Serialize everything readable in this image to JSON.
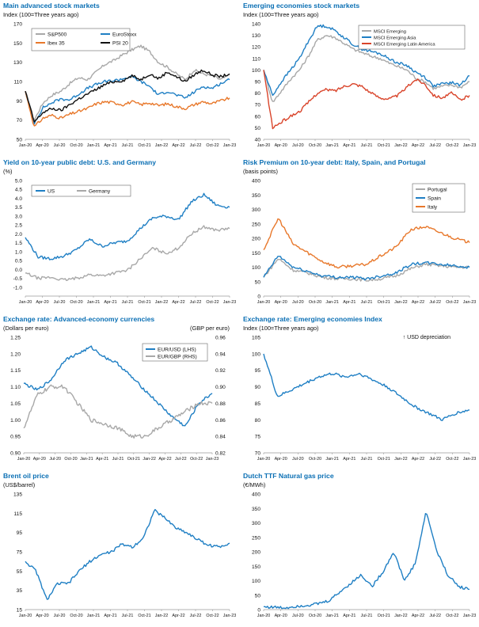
{
  "xticks": [
    "Jan-20",
    "Apr-20",
    "Jul-20",
    "Oct-20",
    "Jan-21",
    "Apr-21",
    "Jul-21",
    "Oct-21",
    "Jan-22",
    "Apr-22",
    "Jul-22",
    "Oct-22",
    "Jan-23"
  ],
  "colors": {
    "blue": "#1f7fc4",
    "grey": "#a8a8a8",
    "orange": "#e8782b",
    "black": "#111111",
    "red": "#d9442a",
    "title": "#0a6fb4"
  },
  "chart_data": [
    {
      "id": "p1",
      "type": "line",
      "title": "Main advanced stock markets",
      "subtitle": "Index (100=Three years ago)",
      "ylim": [
        50,
        170
      ],
      "yticks": [
        50,
        70,
        90,
        110,
        130,
        150,
        170
      ],
      "grid": false,
      "legend": "top-left",
      "legend_cols": 2,
      "series": [
        {
          "name": "S&P500",
          "color": "#a8a8a8",
          "values": [
            100,
            70,
            88,
            96,
            100,
            108,
            114,
            112,
            120,
            128,
            132,
            138,
            143,
            147,
            141,
            130,
            125,
            118,
            112,
            122,
            118,
            116,
            112,
            117
          ]
        },
        {
          "name": "EuroStoxx",
          "color": "#1f7fc4",
          "values": [
            100,
            67,
            83,
            88,
            92,
            91,
            97,
            103,
            107,
            110,
            111,
            113,
            115,
            110,
            105,
            96,
            100,
            96,
            93,
            99,
            105,
            103,
            108,
            112
          ]
        },
        {
          "name": "Ibex 35",
          "color": "#e8782b",
          "values": [
            100,
            63,
            72,
            75,
            72,
            76,
            79,
            82,
            87,
            89,
            88,
            86,
            89,
            86,
            88,
            85,
            87,
            84,
            82,
            86,
            89,
            87,
            90,
            93
          ]
        },
        {
          "name": "PSI 20",
          "color": "#111111",
          "values": [
            100,
            68,
            78,
            82,
            80,
            86,
            92,
            97,
            102,
            107,
            110,
            111,
            116,
            112,
            118,
            113,
            120,
            115,
            110,
            117,
            122,
            117,
            115,
            118
          ]
        }
      ]
    },
    {
      "id": "p2",
      "type": "line",
      "title": "Emerging economies stock markets",
      "subtitle": "Index (100=Three years ago)",
      "ylim": [
        40,
        140
      ],
      "yticks": [
        40,
        50,
        60,
        70,
        80,
        90,
        100,
        110,
        120,
        130,
        140
      ],
      "grid": false,
      "legend": "top-right",
      "legend_cols": 1,
      "series": [
        {
          "name": "MSCI Emerging",
          "color": "#a8a8a8",
          "values": [
            100,
            72,
            82,
            92,
            100,
            112,
            126,
            130,
            128,
            123,
            118,
            115,
            112,
            110,
            106,
            103,
            100,
            93,
            90,
            84,
            86,
            87,
            85,
            90
          ]
        },
        {
          "name": "MSCI Emerging Asia",
          "color": "#1f7fc4",
          "values": [
            100,
            78,
            90,
            100,
            110,
            125,
            138,
            138,
            134,
            128,
            122,
            118,
            116,
            114,
            110,
            106,
            104,
            98,
            94,
            86,
            88,
            89,
            87,
            95
          ]
        },
        {
          "name": "MSCI Emerging Latin America",
          "color": "#d9442a",
          "values": [
            100,
            50,
            55,
            60,
            64,
            72,
            80,
            83,
            82,
            86,
            88,
            86,
            80,
            76,
            75,
            78,
            85,
            92,
            88,
            78,
            76,
            80,
            74,
            78
          ]
        }
      ]
    },
    {
      "id": "p3",
      "type": "line",
      "title": "Yield on 10-year public debt: U.S. and Germany",
      "subtitle": "(%)",
      "ylim": [
        -1.5,
        5.0
      ],
      "yticks": [
        -1.0,
        -0.5,
        0.0,
        0.5,
        1.0,
        1.5,
        2.0,
        2.5,
        3.0,
        3.5,
        4.0,
        4.5,
        5.0
      ],
      "grid": false,
      "legend": "top-left",
      "legend_cols": 2,
      "series": [
        {
          "name": "US",
          "color": "#1f7fc4",
          "values": [
            1.8,
            0.7,
            0.6,
            0.75,
            1.1,
            1.7,
            1.3,
            1.5,
            1.6,
            2.3,
            2.9,
            3.0,
            2.8,
            3.8,
            4.2,
            3.6,
            3.5
          ]
        },
        {
          "name": "Germany",
          "color": "#a8a8a8",
          "values": [
            -0.2,
            -0.5,
            -0.45,
            -0.6,
            -0.5,
            -0.3,
            -0.35,
            -0.2,
            -0.05,
            0.6,
            1.2,
            0.9,
            1.2,
            2.0,
            2.4,
            2.2,
            2.3
          ]
        }
      ]
    },
    {
      "id": "p4",
      "type": "line",
      "title": "Risk Premium on 10-year debt: Italy, Spain, and Portugal",
      "subtitle": "(basis points)",
      "ylim": [
        0,
        400
      ],
      "yticks": [
        0,
        50,
        100,
        150,
        200,
        250,
        300,
        350,
        400
      ],
      "grid": false,
      "legend": "top-right",
      "legend_cols": 1,
      "series": [
        {
          "name": "Portugal",
          "color": "#a8a8a8",
          "values": [
            65,
            130,
            90,
            80,
            65,
            60,
            60,
            55,
            60,
            70,
            95,
            110,
            105,
            100,
            100
          ]
        },
        {
          "name": "Spain",
          "color": "#1f7fc4",
          "values": [
            65,
            140,
            100,
            85,
            70,
            65,
            65,
            60,
            70,
            80,
            110,
            115,
            110,
            105,
            100
          ]
        },
        {
          "name": "Italy",
          "color": "#e8782b",
          "values": [
            160,
            270,
            180,
            150,
            120,
            100,
            105,
            110,
            140,
            170,
            230,
            240,
            220,
            200,
            185
          ]
        }
      ]
    },
    {
      "id": "p5",
      "type": "line",
      "title": "Exchange rate: Advanced-economy currencies",
      "subtitle": "(Dollars per euro)",
      "subtitle_right": "(GBP per euro)",
      "ylim": [
        0.9,
        1.25
      ],
      "yticks": [
        0.9,
        0.95,
        1.0,
        1.05,
        1.1,
        1.15,
        1.2,
        1.25
      ],
      "ylim2": [
        0.82,
        0.96
      ],
      "yticks2": [
        0.82,
        0.84,
        0.86,
        0.88,
        0.9,
        0.92,
        0.94,
        0.96
      ],
      "grid": false,
      "legend": "top-right",
      "legend_cols": 1,
      "series": [
        {
          "name": "EUR/USD (LHS)",
          "color": "#1f7fc4",
          "axis": "left",
          "values": [
            1.11,
            1.09,
            1.12,
            1.18,
            1.2,
            1.22,
            1.19,
            1.17,
            1.13,
            1.09,
            1.05,
            1.01,
            0.98,
            1.05,
            1.08
          ]
        },
        {
          "name": "EUR/GBP (RHS)",
          "color": "#a8a8a8",
          "axis": "right",
          "values": [
            0.85,
            0.89,
            0.9,
            0.9,
            0.88,
            0.86,
            0.855,
            0.85,
            0.84,
            0.84,
            0.85,
            0.86,
            0.87,
            0.88,
            0.88
          ]
        }
      ]
    },
    {
      "id": "p6",
      "type": "line",
      "title": "Exchange rate: Emerging economies Index",
      "subtitle": "Index (100=Three years ago)",
      "annotation": "↑ USD depreciation",
      "ylim": [
        70,
        105
      ],
      "yticks": [
        70,
        75,
        80,
        85,
        90,
        95,
        100,
        105
      ],
      "grid": false,
      "series": [
        {
          "name": "",
          "color": "#1f7fc4",
          "values": [
            100,
            87,
            89,
            91,
            93,
            94,
            93,
            94,
            92,
            90,
            87,
            84,
            82,
            80,
            82,
            83
          ]
        }
      ]
    },
    {
      "id": "p7",
      "type": "line",
      "title": "Brent oil price",
      "subtitle": "(US$/barrel)",
      "ylim": [
        15,
        135
      ],
      "yticks": [
        15,
        35,
        55,
        75,
        95,
        115,
        135
      ],
      "grid": false,
      "series": [
        {
          "name": "",
          "color": "#1f7fc4",
          "values": [
            65,
            55,
            25,
            42,
            42,
            55,
            65,
            72,
            75,
            83,
            80,
            90,
            118,
            110,
            100,
            95,
            88,
            82,
            80,
            84
          ]
        }
      ]
    },
    {
      "id": "p8",
      "type": "line",
      "title": "Dutch TTF Natural gas price",
      "subtitle": "(€/MWh)",
      "ylim": [
        0,
        400
      ],
      "yticks": [
        0,
        50,
        100,
        150,
        200,
        250,
        300,
        350,
        400
      ],
      "grid": false,
      "series": [
        {
          "name": "",
          "color": "#1f7fc4",
          "values": [
            10,
            8,
            6,
            12,
            15,
            20,
            30,
            60,
            90,
            120,
            80,
            130,
            200,
            100,
            160,
            340,
            200,
            120,
            80,
            70
          ]
        }
      ]
    }
  ]
}
